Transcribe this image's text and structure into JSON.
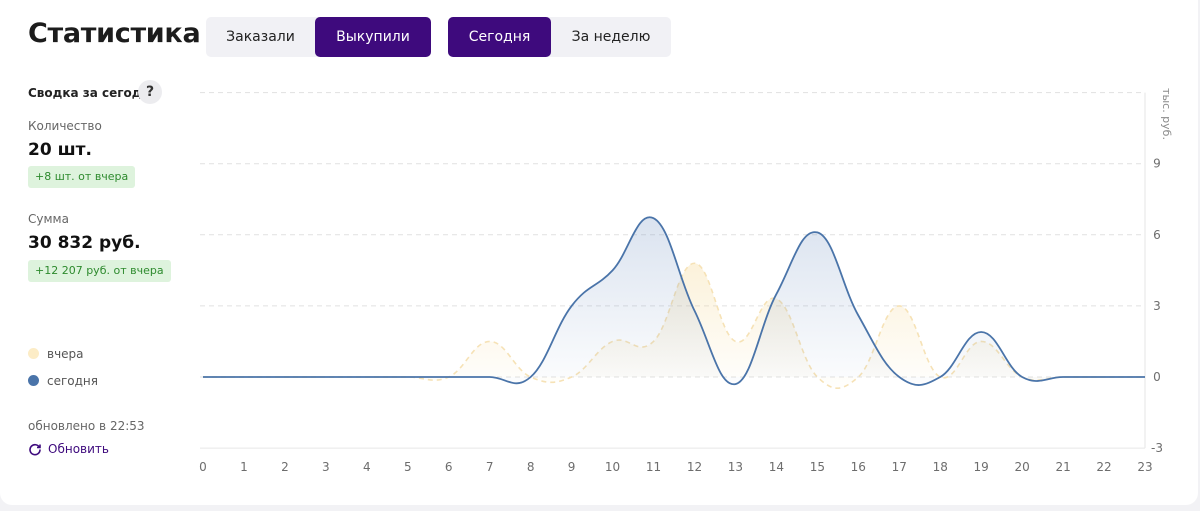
{
  "header": {
    "title": "Статистика"
  },
  "metric_toggle": {
    "ordered": "Заказали",
    "bought": "Выкупили",
    "active": "bought"
  },
  "period_toggle": {
    "today": "Сегодня",
    "week": "За неделю",
    "active": "today"
  },
  "summary": {
    "heading": "Сводка за сегодня",
    "help": "?",
    "quantity_label": "Количество",
    "quantity_value": "20 шт.",
    "quantity_delta": "+8 шт. от вчера",
    "sum_label": "Сумма",
    "sum_value": "30 832 руб.",
    "sum_delta": "+12 207 руб. от вчера"
  },
  "legend": {
    "yesterday": "вчера",
    "today": "сегодня"
  },
  "footer": {
    "updated": "обновлено в 22:53",
    "refresh": "Обновить"
  },
  "colors": {
    "accent": "#3e0a7d",
    "today_line": "#4a74a9",
    "yesterday_line": "#f6e2b6",
    "delta_bg": "#def3dd",
    "delta_text": "#2d8a2d"
  },
  "chart_data": {
    "type": "area",
    "x": [
      0,
      1,
      2,
      3,
      4,
      5,
      6,
      7,
      8,
      9,
      10,
      11,
      12,
      13,
      14,
      15,
      16,
      17,
      18,
      19,
      20,
      21,
      22,
      23
    ],
    "series": [
      {
        "name": "вчера",
        "values": [
          0,
          0,
          0,
          0,
          0,
          0,
          0,
          1.5,
          0,
          0,
          1.5,
          1.5,
          4.8,
          1.5,
          3.3,
          0,
          0,
          3.0,
          0,
          1.5,
          0,
          0,
          0,
          0
        ]
      },
      {
        "name": "сегодня",
        "values": [
          0,
          0,
          0,
          0,
          0,
          0,
          0,
          0,
          0,
          3.0,
          4.5,
          6.7,
          2.8,
          -0.3,
          3.5,
          6.1,
          2.6,
          0,
          0,
          1.9,
          0,
          0,
          0,
          0
        ]
      }
    ],
    "unit_label": "тыс. руб.",
    "y_ticks": [
      9,
      6,
      3,
      0,
      -3
    ],
    "ylim": [
      -3,
      12
    ],
    "xlim": [
      0,
      23
    ],
    "grid": true
  }
}
